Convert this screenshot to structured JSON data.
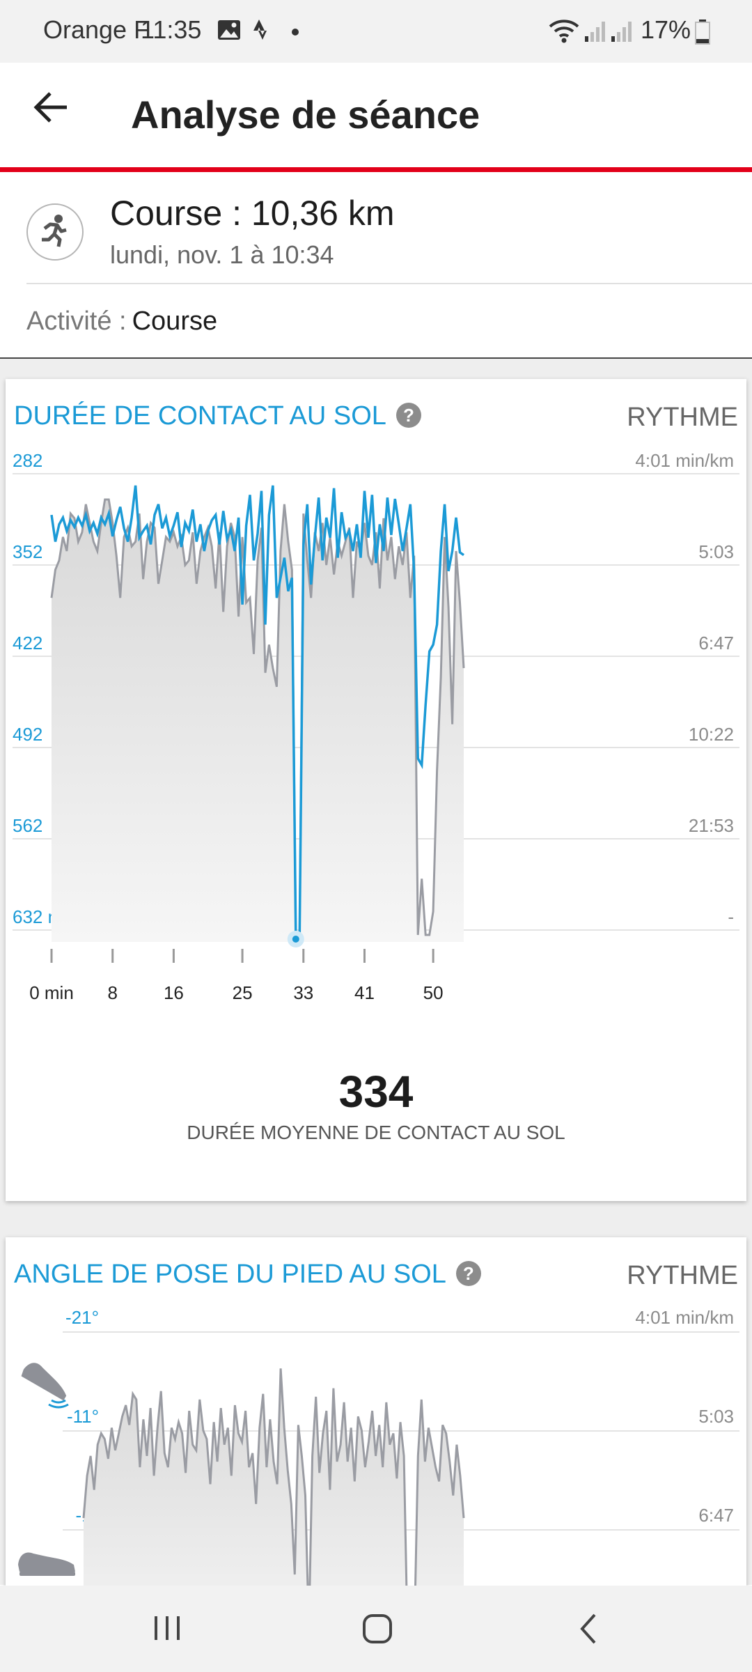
{
  "status_bar": {
    "carrier": "Orange F",
    "time": "11:35",
    "battery": "17%"
  },
  "app_bar": {
    "title": "Analyse de séance",
    "back_icon": "arrow-left-icon"
  },
  "session": {
    "icon": "running-person-icon",
    "title": "Course : 10,36 km",
    "date": "lundi, nov. 1 à 10:34"
  },
  "activity": {
    "label": "Activité :",
    "value": "Course"
  },
  "colors": {
    "accent_red": "#e2001a",
    "series_blue": "#1b9ad6",
    "series_gray": "#9a9ca3"
  },
  "ground_contact_card": {
    "title": "DURÉE DE CONTACT AU SOL",
    "help_icon": "question-mark-icon",
    "secondary_label": "RYTHME",
    "average_value": "334",
    "average_label": "DURÉE MOYENNE DE CONTACT AU SOL"
  },
  "foot_angle_card": {
    "title": "ANGLE DE POSE DU PIED AU SOL",
    "help_icon": "question-mark-icon",
    "secondary_label": "RYTHME",
    "icons": [
      "shoe-heel-strike-icon",
      "shoe-flat-icon"
    ]
  },
  "chart_data": [
    {
      "type": "line",
      "title": "DURÉE DE CONTACT AU SOL",
      "left_axis_ticks": [
        "282",
        "352",
        "422",
        "492",
        "562",
        "632 ms"
      ],
      "left_axis_values": [
        282,
        352,
        422,
        492,
        562,
        632
      ],
      "right_axis_ticks": [
        "4:01 min/km",
        "5:03",
        "6:47",
        "10:22",
        "21:53",
        "-"
      ],
      "x_ticks": [
        "0 min",
        "8",
        "16",
        "25",
        "33",
        "41",
        "50"
      ],
      "x_tick_values": [
        0,
        8,
        16,
        25,
        33,
        41,
        50
      ],
      "xlim": [
        0,
        54
      ],
      "grid": true,
      "series": [
        {
          "name": "DURÉE DE CONTACT AU SOL",
          "color": "#1b9ad6",
          "x": [
            0,
            0.5,
            1,
            1.5,
            2,
            2.5,
            3,
            3.5,
            4,
            4.5,
            5,
            5.5,
            6,
            6.5,
            7,
            7.5,
            8,
            8.5,
            9,
            9.5,
            10,
            10.5,
            11,
            11.5,
            12,
            12.5,
            13,
            13.5,
            14,
            14.5,
            15,
            15.5,
            16,
            16.5,
            17,
            17.5,
            18,
            18.5,
            19,
            19.5,
            20,
            20.5,
            21,
            21.5,
            22,
            22.5,
            23,
            23.5,
            24,
            24.5,
            25,
            25.5,
            26,
            26.5,
            27,
            27.5,
            28,
            28.5,
            29,
            29.5,
            30,
            30.5,
            31,
            31.5,
            32,
            32.5,
            33,
            33.5,
            34,
            34.5,
            35,
            35.5,
            36,
            36.5,
            37,
            37.5,
            38,
            38.5,
            39,
            39.5,
            40,
            40.5,
            41,
            41.5,
            42,
            42.5,
            43,
            43.5,
            44,
            44.5,
            45,
            45.5,
            46,
            46.5,
            47,
            47.5,
            48,
            48.5,
            49,
            49.5,
            50,
            50.5,
            51,
            51.5,
            52,
            52.5,
            53,
            53.5,
            54
          ],
          "values": [
            318,
            338,
            325,
            320,
            330,
            322,
            327,
            320,
            326,
            318,
            330,
            324,
            332,
            320,
            325,
            317,
            334,
            322,
            312,
            328,
            338,
            320,
            296,
            335,
            330,
            326,
            340,
            318,
            310,
            328,
            320,
            334,
            326,
            316,
            342,
            324,
            330,
            314,
            338,
            325,
            345,
            330,
            322,
            318,
            340,
            315,
            336,
            329,
            345,
            320,
            385,
            326,
            303,
            352,
            332,
            300,
            400,
            318,
            296,
            380,
            365,
            350,
            375,
            365,
            632,
            632,
            340,
            310,
            370,
            335,
            305,
            352,
            320,
            335,
            298,
            350,
            316,
            335,
            330,
            345,
            325,
            350,
            300,
            335,
            303,
            354,
            325,
            345,
            305,
            333,
            306,
            325,
            345,
            328,
            310,
            360,
            500,
            505,
            460,
            420,
            415,
            400,
            345,
            310,
            360,
            345,
            320,
            346,
            348
          ]
        },
        {
          "name": "RYTHME",
          "color": "#9a9ca3",
          "x": [
            0,
            0.5,
            1,
            1.5,
            2,
            2.5,
            3,
            3.5,
            4,
            4.5,
            5,
            5.5,
            6,
            6.5,
            7,
            7.5,
            8,
            8.5,
            9,
            9.5,
            10,
            10.5,
            11,
            11.5,
            12,
            12.5,
            13,
            13.5,
            14,
            14.5,
            15,
            15.5,
            16,
            16.5,
            17,
            17.5,
            18,
            18.5,
            19,
            19.5,
            20,
            20.5,
            21,
            21.5,
            22,
            22.5,
            23,
            23.5,
            24,
            24.5,
            25,
            25.5,
            26,
            26.5,
            27,
            27.5,
            28,
            28.5,
            29,
            29.5,
            30,
            30.5,
            31,
            31.5,
            32,
            32.5,
            33,
            33.5,
            34,
            34.5,
            35,
            35.5,
            36,
            36.5,
            37,
            37.5,
            38,
            38.5,
            39,
            39.5,
            40,
            40.5,
            41,
            41.5,
            42,
            42.5,
            43,
            43.5,
            44,
            44.5,
            45,
            45.5,
            46,
            46.5,
            47,
            47.5,
            48,
            48.5,
            49,
            49.5,
            50,
            50.5,
            51,
            51.5,
            52,
            52.5,
            53,
            53.5,
            54
          ],
          "values": [
            0.72,
            0.78,
            0.8,
            0.85,
            0.82,
            0.9,
            0.89,
            0.84,
            0.86,
            0.92,
            0.88,
            0.84,
            0.82,
            0.88,
            0.93,
            0.93,
            0.88,
            0.81,
            0.72,
            0.85,
            0.87,
            0.83,
            0.84,
            0.9,
            0.76,
            0.84,
            0.88,
            0.87,
            0.75,
            0.8,
            0.85,
            0.84,
            0.86,
            0.83,
            0.85,
            0.79,
            0.8,
            0.86,
            0.75,
            0.82,
            0.85,
            0.87,
            0.83,
            0.74,
            0.86,
            0.69,
            0.83,
            0.88,
            0.85,
            0.68,
            0.85,
            0.71,
            0.72,
            0.6,
            0.8,
            0.87,
            0.56,
            0.62,
            0.57,
            0.53,
            0.82,
            0.92,
            0.84,
            0.78,
            0.0,
            0.0,
            0.9,
            0.8,
            0.72,
            0.86,
            0.82,
            0.88,
            0.79,
            0.85,
            0.77,
            0.84,
            0.81,
            0.84,
            0.87,
            0.72,
            0.84,
            0.82,
            0.88,
            0.81,
            0.79,
            0.86,
            0.74,
            0.89,
            0.8,
            0.85,
            0.76,
            0.83,
            0.79,
            0.86,
            0.72,
            0.81,
            0.0,
            0.12,
            0.0,
            0.0,
            0.05,
            0.35,
            0.55,
            0.85,
            0.7,
            0.45,
            0.82,
            0.71,
            0.57
          ]
        }
      ]
    },
    {
      "type": "area",
      "title": "ANGLE DE POSE DU PIED AU SOL",
      "left_axis_ticks": [
        "-21°",
        "-11°",
        "-1°"
      ],
      "left_axis_values": [
        -21,
        -11,
        -1
      ],
      "right_axis_ticks": [
        "4:01 min/km",
        "5:03",
        "6:47"
      ],
      "grid": true,
      "series": [
        {
          "name": "RYTHME",
          "color": "#9a9ca3",
          "x": [
            0,
            0.5,
            1,
            1.5,
            2,
            2.5,
            3,
            3.5,
            4,
            4.5,
            5,
            5.5,
            6,
            6.5,
            7,
            7.5,
            8,
            8.5,
            9,
            9.5,
            10,
            10.5,
            11,
            11.5,
            12,
            12.5,
            13,
            13.5,
            14,
            14.5,
            15,
            15.5,
            16,
            16.5,
            17,
            17.5,
            18,
            18.5,
            19,
            19.5,
            20,
            20.5,
            21,
            21.5,
            22,
            22.5,
            23,
            23.5,
            24,
            24.5,
            25,
            25.5,
            26,
            26.5,
            27,
            27.5,
            28,
            28.5,
            29,
            29.5,
            30,
            30.5,
            31,
            31.5,
            32,
            32.5,
            33,
            33.5,
            34,
            34.5,
            35,
            35.5,
            36,
            36.5,
            37,
            37.5,
            38,
            38.5,
            39,
            39.5,
            40,
            40.5,
            41,
            41.5,
            42,
            42.5,
            43,
            43.5,
            44,
            44.5,
            45,
            45.5,
            46,
            46.5,
            47,
            47.5,
            48,
            48.5,
            49,
            49.5,
            50,
            50.5,
            51,
            51.5,
            52,
            52.5,
            53,
            53.5,
            54
          ],
          "values": [
            0.4,
            0.55,
            0.62,
            0.5,
            0.66,
            0.7,
            0.68,
            0.61,
            0.72,
            0.64,
            0.7,
            0.76,
            0.8,
            0.73,
            0.84,
            0.82,
            0.58,
            0.75,
            0.62,
            0.79,
            0.55,
            0.72,
            0.85,
            0.63,
            0.58,
            0.72,
            0.68,
            0.74,
            0.7,
            0.56,
            0.78,
            0.66,
            0.64,
            0.82,
            0.71,
            0.68,
            0.52,
            0.74,
            0.6,
            0.79,
            0.66,
            0.72,
            0.55,
            0.8,
            0.7,
            0.67,
            0.78,
            0.58,
            0.63,
            0.45,
            0.72,
            0.84,
            0.58,
            0.75,
            0.6,
            0.52,
            0.93,
            0.72,
            0.57,
            0.45,
            0.2,
            0.73,
            0.62,
            0.48,
            0.0,
            0.62,
            0.83,
            0.56,
            0.7,
            0.78,
            0.5,
            0.86,
            0.6,
            0.66,
            0.81,
            0.6,
            0.72,
            0.53,
            0.76,
            0.71,
            0.58,
            0.67,
            0.78,
            0.62,
            0.73,
            0.58,
            0.81,
            0.66,
            0.7,
            0.54,
            0.74,
            0.62,
            0.0,
            0.1,
            0.0,
            0.62,
            0.82,
            0.6,
            0.72,
            0.65,
            0.58,
            0.53,
            0.73,
            0.7,
            0.6,
            0.48,
            0.66,
            0.55,
            0.4
          ]
        }
      ]
    }
  ]
}
